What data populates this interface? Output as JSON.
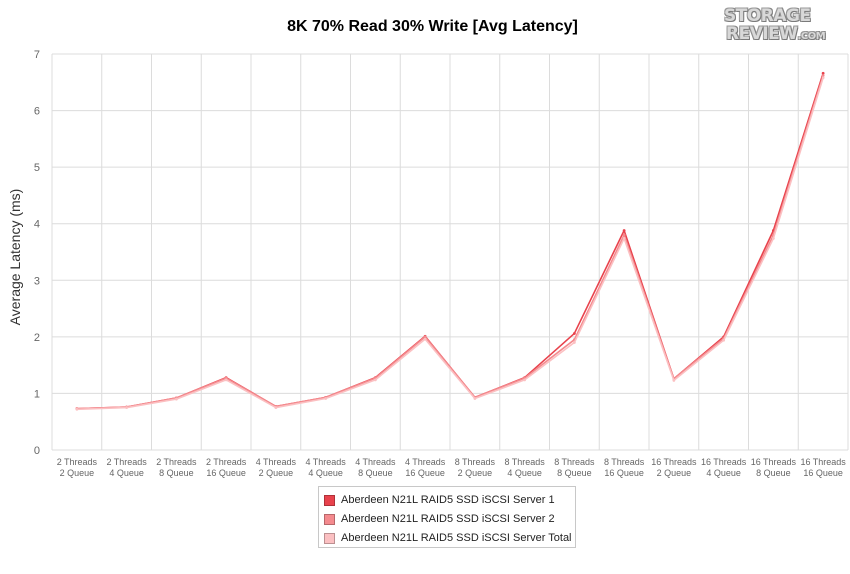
{
  "chart_data": {
    "type": "line",
    "title": "8K 70% Read 30% Write [Avg Latency]",
    "xlabel": "",
    "ylabel": "Average Latency (ms)",
    "ylim": [
      0,
      7
    ],
    "yticks": [
      "0",
      "1",
      "2",
      "3",
      "4",
      "5",
      "6",
      "7"
    ],
    "grid": true,
    "legend_position": "bottom",
    "categories": [
      [
        "2 Threads",
        "2 Queue"
      ],
      [
        "2 Threads",
        "4 Queue"
      ],
      [
        "2 Threads",
        "8 Queue"
      ],
      [
        "2 Threads",
        "16 Queue"
      ],
      [
        "4 Threads",
        "2 Queue"
      ],
      [
        "4 Threads",
        "4 Queue"
      ],
      [
        "4 Threads",
        "8 Queue"
      ],
      [
        "4 Threads",
        "16 Queue"
      ],
      [
        "8 Threads",
        "2 Queue"
      ],
      [
        "8 Threads",
        "4 Queue"
      ],
      [
        "8 Threads",
        "8 Queue"
      ],
      [
        "8 Threads",
        "16 Queue"
      ],
      [
        "16 Threads",
        "2 Queue"
      ],
      [
        "16 Threads",
        "4 Queue"
      ],
      [
        "16 Threads",
        "8 Queue"
      ],
      [
        "16 Threads",
        "16 Queue"
      ]
    ],
    "series": [
      {
        "name": "Aberdeen N21L RAID5 SSD iSCSI Server 1",
        "color": "#e8424c",
        "values": [
          0.73,
          0.76,
          0.92,
          1.28,
          0.77,
          0.93,
          1.28,
          2.01,
          0.93,
          1.28,
          2.06,
          3.88,
          1.26,
          2.0,
          3.88,
          6.66
        ]
      },
      {
        "name": "Aberdeen N21L RAID5 SSD iSCSI Server 2",
        "color": "#f48a8e",
        "values": [
          0.73,
          0.76,
          0.92,
          1.27,
          0.77,
          0.93,
          1.27,
          2.0,
          0.93,
          1.27,
          1.95,
          3.8,
          1.26,
          1.97,
          3.8,
          6.62
        ]
      },
      {
        "name": "Aberdeen N21L RAID5 SSD iSCSI Server Total",
        "color": "#fbc0c2",
        "values": [
          0.72,
          0.75,
          0.9,
          1.24,
          0.75,
          0.91,
          1.24,
          1.96,
          0.91,
          1.24,
          1.9,
          3.74,
          1.23,
          1.94,
          3.74,
          6.58
        ]
      }
    ]
  },
  "watermark": {
    "line1": "STORAGE",
    "line2": "REVIEW",
    "suffix": ".COM"
  }
}
